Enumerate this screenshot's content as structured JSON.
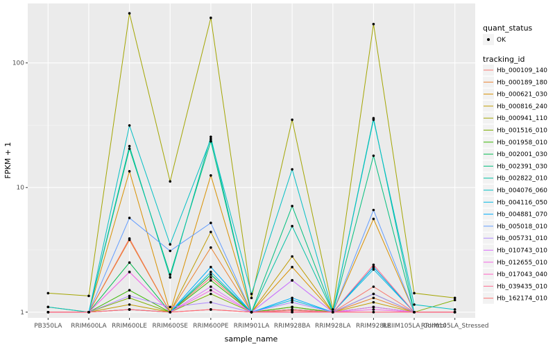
{
  "chart_data": {
    "type": "line",
    "xlabel": "sample_name",
    "ylabel": "FPKM + 1",
    "y_scale": "log10",
    "ylim": [
      0.9,
      300
    ],
    "y_ticks": [
      1,
      10,
      100
    ],
    "y_tick_labels": [
      "1",
      "10",
      "100"
    ],
    "grid": true,
    "legend_position": "right",
    "categories": [
      "PB350LA",
      "RRIM600LA",
      "RRIM600LE",
      "RRIM600SE",
      "RRIM600PE",
      "RRIM901LA",
      "RRIM928BA",
      "RRIM928LA",
      "RRIM928LE",
      "RRIIM105LA_Control",
      "RRIIM105LA_Stressed"
    ],
    "shape_legend": {
      "title": "quant_status",
      "entries": [
        "OK"
      ]
    },
    "color_legend_title": "tracking_id",
    "series": [
      {
        "name": "Hb_000109_140",
        "color": "#F8766D",
        "values": [
          1.0,
          1.0,
          3.9,
          1.0,
          1.9,
          1.0,
          1.03,
          1.0,
          1.6,
          1.0,
          1.0
        ]
      },
      {
        "name": "Hb_000189_180",
        "color": "#EA8331",
        "values": [
          1.0,
          1.0,
          3.8,
          1.0,
          3.3,
          1.0,
          1.1,
          1.0,
          1.3,
          1.0,
          1.0
        ]
      },
      {
        "name": "Hb_000621_030",
        "color": "#D89000",
        "values": [
          1.0,
          1.0,
          13.5,
          1.0,
          12.5,
          1.0,
          2.3,
          1.0,
          5.6,
          1.0,
          1.0
        ]
      },
      {
        "name": "Hb_000816_240",
        "color": "#C09B00",
        "values": [
          1.0,
          1.0,
          1.15,
          1.0,
          4.4,
          1.0,
          2.8,
          1.0,
          1.2,
          1.0,
          1.0
        ]
      },
      {
        "name": "Hb_000941_110",
        "color": "#A3A500",
        "values": [
          1.42,
          1.35,
          250,
          11.2,
          230,
          1.3,
          35,
          1.05,
          205,
          1.42,
          1.3
        ]
      },
      {
        "name": "Hb_001516_010",
        "color": "#7CAE00",
        "values": [
          1.1,
          1.0,
          1.3,
          1.0,
          1.4,
          1.0,
          1.05,
          1.0,
          1.1,
          1.0,
          1.25
        ]
      },
      {
        "name": "Hb_001958_010",
        "color": "#39B600",
        "values": [
          1.0,
          1.0,
          1.5,
          1.0,
          1.8,
          1.0,
          1.1,
          1.0,
          1.4,
          1.0,
          1.0
        ]
      },
      {
        "name": "Hb_002001_030",
        "color": "#00BB4E",
        "values": [
          1.0,
          1.0,
          2.5,
          1.0,
          2.0,
          1.0,
          1.05,
          1.0,
          2.3,
          1.0,
          1.0
        ]
      },
      {
        "name": "Hb_002391_030",
        "color": "#00BF7D",
        "values": [
          1.0,
          1.0,
          20.5,
          2.0,
          23.5,
          1.0,
          7.1,
          1.0,
          18.0,
          1.0,
          1.0
        ]
      },
      {
        "name": "Hb_002822_010",
        "color": "#00C1A3",
        "values": [
          1.0,
          1.0,
          21.5,
          1.9,
          25.5,
          1.0,
          4.9,
          1.0,
          36,
          1.0,
          1.0
        ]
      },
      {
        "name": "Hb_004076_060",
        "color": "#00BFC4",
        "values": [
          1.1,
          1.0,
          31.5,
          3.5,
          24.5,
          1.4,
          14,
          1.0,
          35,
          1.15,
          1.05
        ]
      },
      {
        "name": "Hb_004116_050",
        "color": "#00B9E3",
        "values": [
          1.0,
          1.0,
          1.05,
          1.0,
          2.1,
          1.0,
          1.25,
          1.0,
          2.2,
          1.0,
          1.0
        ]
      },
      {
        "name": "Hb_004881_070",
        "color": "#00ADFA",
        "values": [
          1.0,
          1.0,
          1.05,
          1.0,
          2.3,
          1.0,
          1.3,
          1.0,
          2.3,
          1.0,
          1.0
        ]
      },
      {
        "name": "Hb_005018_010",
        "color": "#619CFF",
        "values": [
          1.0,
          1.0,
          5.7,
          3.1,
          5.2,
          1.0,
          1.8,
          1.0,
          6.6,
          1.0,
          1.0
        ]
      },
      {
        "name": "Hb_005731_010",
        "color": "#AE87FF",
        "values": [
          1.0,
          1.0,
          1.35,
          1.1,
          1.2,
          1.0,
          1.2,
          1.0,
          1.4,
          1.0,
          1.0
        ]
      },
      {
        "name": "Hb_010743_010",
        "color": "#DB72FB",
        "values": [
          1.0,
          1.0,
          2.1,
          1.0,
          1.6,
          1.0,
          1.8,
          1.0,
          1.1,
          1.0,
          1.0
        ]
      },
      {
        "name": "Hb_012655_010",
        "color": "#F564E3",
        "values": [
          1.0,
          1.0,
          2.1,
          1.0,
          1.5,
          1.0,
          1.0,
          1.0,
          1.05,
          1.0,
          1.0
        ]
      },
      {
        "name": "Hb_017043_040",
        "color": "#FF61C3",
        "values": [
          1.0,
          1.0,
          1.05,
          1.0,
          1.05,
          1.0,
          1.0,
          1.0,
          1.0,
          1.0,
          1.0
        ]
      },
      {
        "name": "Hb_039435_010",
        "color": "#FF6C91",
        "values": [
          1.0,
          1.0,
          1.05,
          1.0,
          1.05,
          1.0,
          1.05,
          1.0,
          2.4,
          1.0,
          1.0
        ]
      },
      {
        "name": "Hb_162174_010",
        "color": "#FD6F6F",
        "values": [
          1.0,
          1.0,
          1.05,
          1.0,
          1.05,
          1.0,
          1.0,
          1.0,
          1.0,
          1.0,
          1.0
        ]
      }
    ]
  }
}
